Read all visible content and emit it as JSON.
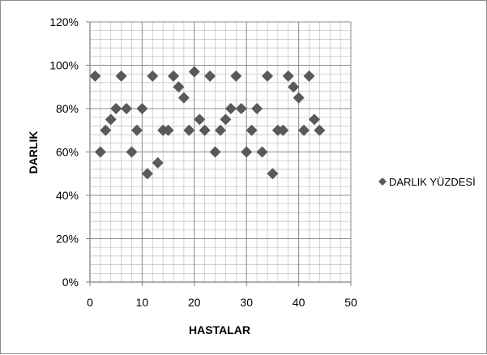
{
  "chart_data": {
    "type": "scatter",
    "xlabel": "HASTALAR",
    "ylabel": "DARLIK",
    "xlim": [
      0,
      50
    ],
    "ylim": [
      0,
      1.2
    ],
    "x_ticks": [
      0,
      10,
      20,
      30,
      40,
      50
    ],
    "y_ticks": [
      0,
      0.2,
      0.4,
      0.6,
      0.8,
      1.0,
      1.2
    ],
    "x_tick_labels": [
      "0",
      "10",
      "20",
      "30",
      "40",
      "50"
    ],
    "y_tick_labels": [
      "0%",
      "20%",
      "40%",
      "60%",
      "80%",
      "100%",
      "120%"
    ],
    "grid": true,
    "minor_grid": true,
    "legend_position": "right",
    "series": [
      {
        "name": "DARLIK YÜZDESİ",
        "marker": "diamond",
        "color": "#595959",
        "x": [
          1,
          2,
          3,
          4,
          5,
          6,
          7,
          8,
          9,
          10,
          11,
          12,
          13,
          14,
          15,
          16,
          17,
          18,
          19,
          20,
          21,
          22,
          23,
          24,
          25,
          26,
          27,
          28,
          29,
          30,
          31,
          32,
          33,
          34,
          35,
          36,
          37,
          38,
          39,
          40,
          41,
          42,
          43,
          44
        ],
        "y": [
          0.95,
          0.6,
          0.7,
          0.75,
          0.8,
          0.95,
          0.8,
          0.6,
          0.7,
          0.8,
          0.5,
          0.95,
          0.55,
          0.7,
          0.7,
          0.95,
          0.9,
          0.85,
          0.7,
          0.97,
          0.75,
          0.7,
          0.95,
          0.6,
          0.7,
          0.75,
          0.8,
          0.95,
          0.8,
          0.6,
          0.7,
          0.8,
          0.6,
          0.95,
          0.5,
          0.7,
          0.7,
          0.95,
          0.9,
          0.85,
          0.7,
          0.95,
          0.75,
          0.7
        ]
      }
    ]
  }
}
